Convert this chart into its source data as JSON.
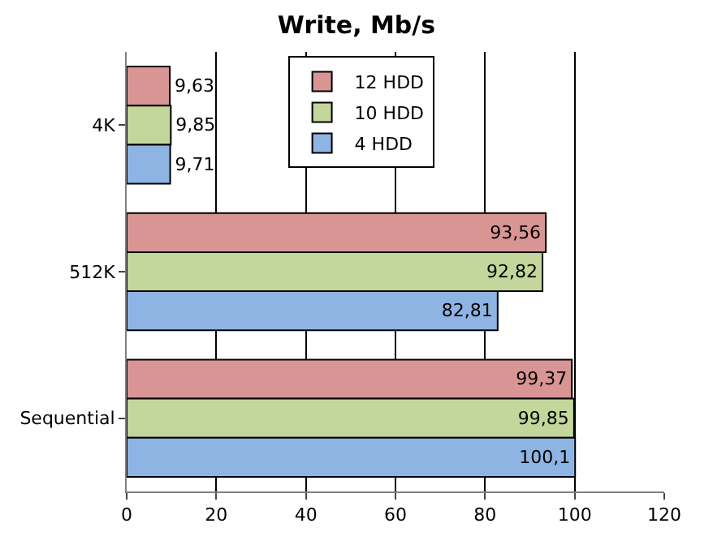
{
  "chart_data": {
    "type": "bar",
    "orientation": "horizontal",
    "title": "Write, Mb/s",
    "categories": [
      "4K",
      "512K",
      "Sequential"
    ],
    "series": [
      {
        "name": "12 HDD",
        "color": "#d99594",
        "values": [
          9.63,
          93.56,
          99.37
        ],
        "value_labels": [
          "9,63",
          "93,56",
          "99,37"
        ]
      },
      {
        "name": "10 HDD",
        "color": "#c3d69b",
        "values": [
          9.85,
          92.82,
          99.85
        ],
        "value_labels": [
          "9,85",
          "92,82",
          "99,85"
        ]
      },
      {
        "name": "4 HDD",
        "color": "#8eb4e3",
        "values": [
          9.71,
          82.81,
          100.1
        ],
        "value_labels": [
          "9,71",
          "82,81",
          "100,1"
        ]
      }
    ],
    "xlim": [
      0,
      120
    ],
    "xticks": [
      0,
      20,
      40,
      60,
      80,
      100,
      120
    ],
    "grid": "x",
    "legend": "top"
  }
}
